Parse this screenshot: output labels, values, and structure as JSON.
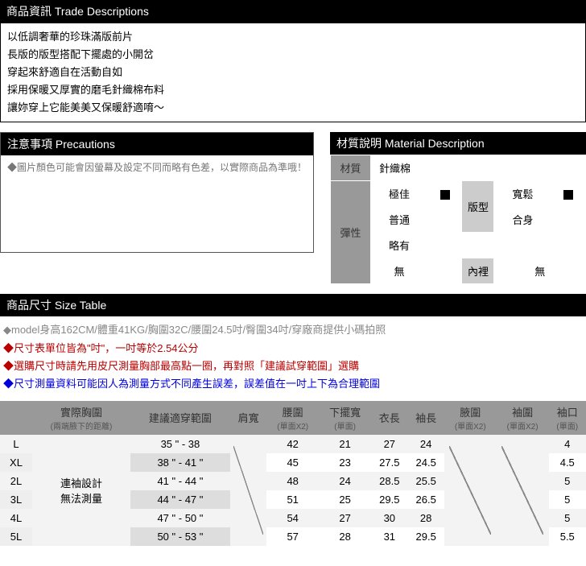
{
  "trade": {
    "header": "商品資訊 Trade Descriptions",
    "lines": [
      "以低調奢華的珍珠滿版前片",
      "長版的版型搭配下擺處的小開岔",
      "穿起來舒適自在活動自如",
      "採用保暖又厚實的磨毛針織棉布料",
      "讓妳穿上它能美美又保暖舒適唷～"
    ]
  },
  "precautions": {
    "header": "注意事項 Precautions",
    "text": "◆圖片顏色可能會因螢幕及設定不同而略有色差，以實際商品為準哦！"
  },
  "material": {
    "header": "材質說明 Material Description",
    "material_label": "材質",
    "material_value": "針織棉",
    "elasticity_label": "彈性",
    "elasticity_options": [
      "極佳",
      "普通",
      "略有",
      "無"
    ],
    "elasticity_selected": 0,
    "fit_label": "版型",
    "fit_options": [
      "寬鬆",
      "合身"
    ],
    "fit_selected": 0,
    "lining_label": "內裡",
    "lining_value": "無"
  },
  "size": {
    "header": "商品尺寸 Size Table",
    "notes": [
      {
        "cls": "note-gray",
        "text": "◆model身高162CM/體重41KG/胸圍32C/腰圍24.5吋/臀圍34吋/穿廠商提供小碼拍照"
      },
      {
        "cls": "note-red",
        "text": "◆尺寸表單位皆為\"吋\"，一吋等於2.54公分"
      },
      {
        "cls": "note-red",
        "text": "◆選購尺寸時請先用皮尺測量胸部最高點一圈，再對照「建議試穿範圍」選購"
      },
      {
        "cls": "note-blue",
        "text": "◆尺寸測量資料可能因人為測量方式不同產生誤差，誤差值在一吋上下為合理範圍"
      }
    ],
    "columns": [
      {
        "main": "",
        "sub": ""
      },
      {
        "main": "實際胸圍",
        "sub": "(兩端腋下的距離)"
      },
      {
        "main": "建議適穿範圍",
        "sub": ""
      },
      {
        "main": "肩寬",
        "sub": ""
      },
      {
        "main": "腰圍",
        "sub": "(單面X2)"
      },
      {
        "main": "下擺寬",
        "sub": "(單面)"
      },
      {
        "main": "衣長",
        "sub": ""
      },
      {
        "main": "袖長",
        "sub": ""
      },
      {
        "main": "腋圍",
        "sub": "(單面X2)"
      },
      {
        "main": "袖圍",
        "sub": "(單面X2)"
      },
      {
        "main": "袖口",
        "sub": "(單面)"
      }
    ],
    "no_measure_text": "連袖設計\n無法測量",
    "rows": [
      {
        "size": "L",
        "range": "35 \" - 38",
        "waist": "42",
        "hem": "21",
        "len": "27",
        "sleeve": "24",
        "cuff": "4"
      },
      {
        "size": "XL",
        "range": "38 \" - 41 \"",
        "waist": "45",
        "hem": "23",
        "len": "27.5",
        "sleeve": "24.5",
        "cuff": "4.5"
      },
      {
        "size": "2L",
        "range": "41 \" - 44 \"",
        "waist": "48",
        "hem": "24",
        "len": "28.5",
        "sleeve": "25.5",
        "cuff": "5"
      },
      {
        "size": "3L",
        "range": "44 \" - 47 \"",
        "waist": "51",
        "hem": "25",
        "len": "29.5",
        "sleeve": "26.5",
        "cuff": "5"
      },
      {
        "size": "4L",
        "range": "47 \" - 50 \"",
        "waist": "54",
        "hem": "27",
        "len": "30",
        "sleeve": "28",
        "cuff": "5"
      },
      {
        "size": "5L",
        "range": "50 \" - 53 \"",
        "waist": "57",
        "hem": "28",
        "len": "31",
        "sleeve": "29.5",
        "cuff": "5.5"
      }
    ]
  },
  "colors": {
    "header_bg": "#000000",
    "header_fg": "#ffffff",
    "label_bg": "#999999",
    "sub_bg": "#cccccc",
    "range_bg": "#dddddd",
    "alt_bg": "#f3f3f3"
  }
}
